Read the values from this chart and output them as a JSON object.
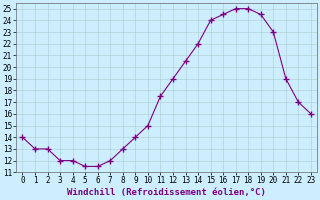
{
  "hours": [
    0,
    1,
    2,
    3,
    4,
    5,
    6,
    7,
    8,
    9,
    10,
    11,
    12,
    13,
    14,
    15,
    16,
    17,
    18,
    19,
    20,
    21,
    22,
    23
  ],
  "temps": [
    14,
    13,
    13,
    12,
    12,
    11.5,
    11.5,
    12,
    13,
    14,
    15,
    17.5,
    19,
    20.5,
    22,
    24,
    24.5,
    25,
    25,
    24.5,
    23,
    19,
    17,
    16
  ],
  "line_color": "#800080",
  "marker": "+",
  "marker_size": 4,
  "bg_color": "#cceeff",
  "grid_color": "#aacccc",
  "xlabel": "Windchill (Refroidissement éolien,°C)",
  "xlim": [
    -0.5,
    23.5
  ],
  "ylim": [
    11,
    25.5
  ],
  "yticks": [
    11,
    12,
    13,
    14,
    15,
    16,
    17,
    18,
    19,
    20,
    21,
    22,
    23,
    24,
    25
  ],
  "xtick_labels": [
    "0",
    "1",
    "2",
    "3",
    "4",
    "5",
    "6",
    "7",
    "8",
    "9",
    "10",
    "11",
    "12",
    "13",
    "14",
    "15",
    "16",
    "17",
    "18",
    "19",
    "20",
    "21",
    "22",
    "23"
  ],
  "label_fontsize": 6.5,
  "tick_fontsize": 5.5
}
